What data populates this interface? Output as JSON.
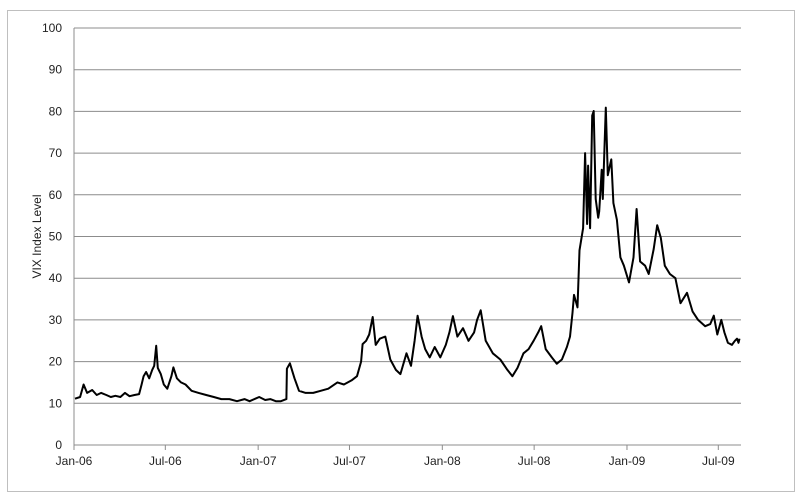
{
  "chart_data": {
    "type": "line",
    "title": "",
    "xlabel": "",
    "ylabel": "VIX Index Level",
    "ylim": [
      0,
      100
    ],
    "yticks": [
      0,
      10,
      20,
      30,
      40,
      50,
      60,
      70,
      80,
      90,
      100
    ],
    "xlim": [
      "2006-01-01",
      "2009-08-15"
    ],
    "xticks": [
      {
        "date": "2006-01-01",
        "label": "Jan-06"
      },
      {
        "date": "2006-07-01",
        "label": "Jul-06"
      },
      {
        "date": "2007-01-01",
        "label": "Jan-07"
      },
      {
        "date": "2007-07-01",
        "label": "Jul-07"
      },
      {
        "date": "2008-01-01",
        "label": "Jan-08"
      },
      {
        "date": "2008-07-01",
        "label": "Jul-08"
      },
      {
        "date": "2009-01-01",
        "label": "Jan-09"
      },
      {
        "date": "2009-07-01",
        "label": "Jul-09"
      }
    ],
    "grid": "horizontal",
    "legend": "none",
    "line_color": "#000000",
    "series": [
      {
        "values": [
          [
            "2006-01-03",
            11.1
          ],
          [
            "2006-01-13",
            11.5
          ],
          [
            "2006-01-20",
            14.5
          ],
          [
            "2006-01-27",
            12.5
          ],
          [
            "2006-02-06",
            13.2
          ],
          [
            "2006-02-15",
            12.0
          ],
          [
            "2006-02-24",
            12.5
          ],
          [
            "2006-03-06",
            12.0
          ],
          [
            "2006-03-15",
            11.5
          ],
          [
            "2006-03-24",
            11.8
          ],
          [
            "2006-04-03",
            11.5
          ],
          [
            "2006-04-12",
            12.5
          ],
          [
            "2006-04-21",
            11.7
          ],
          [
            "2006-05-01",
            12.0
          ],
          [
            "2006-05-10",
            12.2
          ],
          [
            "2006-05-15",
            14.5
          ],
          [
            "2006-05-19",
            16.5
          ],
          [
            "2006-05-24",
            17.5
          ],
          [
            "2006-05-30",
            16.0
          ],
          [
            "2006-06-05",
            18.0
          ],
          [
            "2006-06-09",
            19.0
          ],
          [
            "2006-06-13",
            23.8
          ],
          [
            "2006-06-16",
            18.5
          ],
          [
            "2006-06-22",
            17.0
          ],
          [
            "2006-06-28",
            14.5
          ],
          [
            "2006-07-05",
            13.5
          ],
          [
            "2006-07-13",
            16.5
          ],
          [
            "2006-07-17",
            18.6
          ],
          [
            "2006-07-24",
            16.0
          ],
          [
            "2006-08-01",
            15.0
          ],
          [
            "2006-08-10",
            14.5
          ],
          [
            "2006-08-22",
            13.0
          ],
          [
            "2006-09-05",
            12.5
          ],
          [
            "2006-09-20",
            12.0
          ],
          [
            "2006-10-05",
            11.5
          ],
          [
            "2006-10-20",
            11.0
          ],
          [
            "2006-11-05",
            11.0
          ],
          [
            "2006-11-20",
            10.5
          ],
          [
            "2006-12-05",
            11.0
          ],
          [
            "2006-12-15",
            10.5
          ],
          [
            "2007-01-03",
            11.5
          ],
          [
            "2007-01-15",
            10.8
          ],
          [
            "2007-01-25",
            11.0
          ],
          [
            "2007-02-05",
            10.5
          ],
          [
            "2007-02-15",
            10.5
          ],
          [
            "2007-02-26",
            11.0
          ],
          [
            "2007-02-27",
            18.3
          ],
          [
            "2007-03-05",
            19.6
          ],
          [
            "2007-03-14",
            16.0
          ],
          [
            "2007-03-23",
            13.0
          ],
          [
            "2007-04-05",
            12.5
          ],
          [
            "2007-04-20",
            12.5
          ],
          [
            "2007-05-05",
            13.0
          ],
          [
            "2007-05-20",
            13.5
          ],
          [
            "2007-06-07",
            15.0
          ],
          [
            "2007-06-20",
            14.5
          ],
          [
            "2007-07-05",
            15.5
          ],
          [
            "2007-07-16",
            16.5
          ],
          [
            "2007-07-24",
            20.0
          ],
          [
            "2007-07-27",
            24.2
          ],
          [
            "2007-08-03",
            25.0
          ],
          [
            "2007-08-09",
            26.5
          ],
          [
            "2007-08-16",
            30.7
          ],
          [
            "2007-08-22",
            24.0
          ],
          [
            "2007-08-30",
            25.5
          ],
          [
            "2007-09-10",
            26.0
          ],
          [
            "2007-09-20",
            20.5
          ],
          [
            "2007-10-01",
            18.0
          ],
          [
            "2007-10-10",
            17.0
          ],
          [
            "2007-10-22",
            22.0
          ],
          [
            "2007-10-31",
            19.0
          ],
          [
            "2007-11-07",
            25.0
          ],
          [
            "2007-11-13",
            31.0
          ],
          [
            "2007-11-21",
            26.0
          ],
          [
            "2007-11-28",
            23.0
          ],
          [
            "2007-12-07",
            21.0
          ],
          [
            "2007-12-17",
            23.5
          ],
          [
            "2007-12-28",
            21.0
          ],
          [
            "2008-01-08",
            24.0
          ],
          [
            "2008-01-15",
            27.0
          ],
          [
            "2008-01-22",
            30.9
          ],
          [
            "2008-01-31",
            26.0
          ],
          [
            "2008-02-11",
            28.0
          ],
          [
            "2008-02-22",
            25.0
          ],
          [
            "2008-03-04",
            27.0
          ],
          [
            "2008-03-10",
            30.0
          ],
          [
            "2008-03-17",
            32.3
          ],
          [
            "2008-03-27",
            25.0
          ],
          [
            "2008-04-10",
            22.0
          ],
          [
            "2008-04-25",
            20.5
          ],
          [
            "2008-05-09",
            18.0
          ],
          [
            "2008-05-19",
            16.5
          ],
          [
            "2008-05-29",
            18.5
          ],
          [
            "2008-06-10",
            22.0
          ],
          [
            "2008-06-20",
            23.0
          ],
          [
            "2008-06-30",
            25.0
          ],
          [
            "2008-07-09",
            27.0
          ],
          [
            "2008-07-15",
            28.5
          ],
          [
            "2008-07-24",
            23.0
          ],
          [
            "2008-08-05",
            21.0
          ],
          [
            "2008-08-15",
            19.5
          ],
          [
            "2008-08-25",
            20.5
          ],
          [
            "2008-09-04",
            23.5
          ],
          [
            "2008-09-10",
            26.0
          ],
          [
            "2008-09-15",
            31.7
          ],
          [
            "2008-09-18",
            36.0
          ],
          [
            "2008-09-25",
            33.0
          ],
          [
            "2008-09-29",
            46.7
          ],
          [
            "2008-10-06",
            52.0
          ],
          [
            "2008-10-10",
            70.0
          ],
          [
            "2008-10-14",
            53.0
          ],
          [
            "2008-10-16",
            67.0
          ],
          [
            "2008-10-20",
            52.0
          ],
          [
            "2008-10-24",
            79.0
          ],
          [
            "2008-10-27",
            80.1
          ],
          [
            "2008-10-31",
            59.0
          ],
          [
            "2008-11-05",
            54.5
          ],
          [
            "2008-11-07",
            56.0
          ],
          [
            "2008-11-12",
            66.0
          ],
          [
            "2008-11-14",
            59.0
          ],
          [
            "2008-11-20",
            80.9
          ],
          [
            "2008-11-24",
            64.7
          ],
          [
            "2008-12-01",
            68.5
          ],
          [
            "2008-12-05",
            58.0
          ],
          [
            "2008-12-12",
            54.0
          ],
          [
            "2008-12-19",
            45.0
          ],
          [
            "2008-12-26",
            43.0
          ],
          [
            "2009-01-05",
            39.0
          ],
          [
            "2009-01-14",
            45.0
          ],
          [
            "2009-01-20",
            56.6
          ],
          [
            "2009-01-27",
            44.0
          ],
          [
            "2009-02-06",
            43.0
          ],
          [
            "2009-02-13",
            41.0
          ],
          [
            "2009-02-23",
            47.0
          ],
          [
            "2009-03-02",
            52.7
          ],
          [
            "2009-03-09",
            49.7
          ],
          [
            "2009-03-17",
            43.0
          ],
          [
            "2009-03-27",
            41.0
          ],
          [
            "2009-04-07",
            40.0
          ],
          [
            "2009-04-17",
            34.0
          ],
          [
            "2009-04-30",
            36.5
          ],
          [
            "2009-05-11",
            32.0
          ],
          [
            "2009-05-22",
            30.0
          ],
          [
            "2009-06-05",
            28.5
          ],
          [
            "2009-06-15",
            29.0
          ],
          [
            "2009-06-22",
            31.0
          ],
          [
            "2009-06-29",
            26.5
          ],
          [
            "2009-07-07",
            30.0
          ],
          [
            "2009-07-13",
            27.0
          ],
          [
            "2009-07-20",
            24.5
          ],
          [
            "2009-07-28",
            24.0
          ],
          [
            "2009-08-03",
            25.0
          ],
          [
            "2009-08-07",
            25.5
          ],
          [
            "2009-08-10",
            24.5
          ],
          [
            "2009-08-12",
            25.5
          ]
        ]
      }
    ]
  }
}
